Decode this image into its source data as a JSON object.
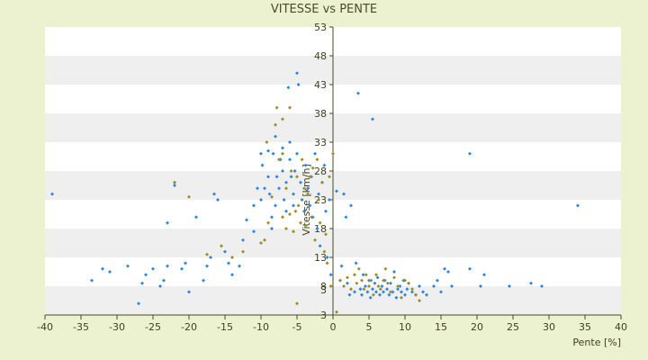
{
  "chart_data": {
    "type": "scatter",
    "title": "VITESSE vs PENTE",
    "xlabel": "Pente [%]",
    "ylabel": "Vitesse [km/h]",
    "xlim": [
      -40,
      40
    ],
    "ylim": [
      3,
      53
    ],
    "x_ticks": [
      "-40",
      "-35",
      "-30",
      "-25",
      "-20",
      "-15",
      "-10",
      "-5",
      "0",
      "5",
      "10",
      "15",
      "20",
      "25",
      "30",
      "35",
      "40"
    ],
    "y_ticks": [
      "3",
      "8",
      "13",
      "18",
      "23",
      "28",
      "33",
      "38",
      "43",
      "48",
      "53"
    ],
    "y_tick_labels_shown": [
      "3",
      "3",
      "8",
      "13",
      "18",
      "23",
      "28",
      "33",
      "38",
      "43",
      "48",
      "53"
    ],
    "grid": "horizontal bands",
    "colors": {
      "background": "#ecf2cf",
      "plot_band_light": "#ffffff",
      "plot_band_dark": "#efefef",
      "series_blue": "#2e86de",
      "series_olive": "#9c8f2a",
      "axis": "#4a4a2a"
    },
    "series": [
      {
        "color": "#2e86de",
        "points": [
          [
            -39,
            24
          ],
          [
            -33.5,
            9
          ],
          [
            -32,
            11
          ],
          [
            -31,
            10.5
          ],
          [
            -28.5,
            11.5
          ],
          [
            -27,
            5
          ],
          [
            -26.5,
            8.5
          ],
          [
            -26,
            10
          ],
          [
            -25,
            11
          ],
          [
            -24,
            8
          ],
          [
            -23.5,
            9
          ],
          [
            -23,
            19
          ],
          [
            -23,
            11.5
          ],
          [
            -22,
            25.5
          ],
          [
            -22,
            26
          ],
          [
            -21,
            11
          ],
          [
            -20.5,
            12
          ],
          [
            -20,
            7
          ],
          [
            -19,
            20
          ],
          [
            -18,
            9
          ],
          [
            -17.5,
            11.5
          ],
          [
            -17,
            13
          ],
          [
            -16.5,
            24
          ],
          [
            -16,
            23
          ],
          [
            -15,
            14
          ],
          [
            -14.5,
            12
          ],
          [
            -14,
            10
          ],
          [
            -13,
            11.5
          ],
          [
            -12.5,
            16
          ],
          [
            -12,
            19.5
          ],
          [
            -11,
            22
          ],
          [
            -11,
            17.5
          ],
          [
            -10.5,
            25
          ],
          [
            -10,
            23
          ],
          [
            -10,
            31
          ],
          [
            -9.8,
            29
          ],
          [
            -9.5,
            25
          ],
          [
            -9,
            31.5
          ],
          [
            -9,
            27
          ],
          [
            -8.8,
            24
          ],
          [
            -8.5,
            20
          ],
          [
            -8.5,
            18
          ],
          [
            -8.3,
            31
          ],
          [
            -8,
            34
          ],
          [
            -8,
            22
          ],
          [
            -7.8,
            27
          ],
          [
            -7.5,
            25
          ],
          [
            -7.3,
            30
          ],
          [
            -7,
            32
          ],
          [
            -7,
            28
          ],
          [
            -6.8,
            23
          ],
          [
            -6.5,
            26
          ],
          [
            -6.5,
            21
          ],
          [
            -6.2,
            42.5
          ],
          [
            -6,
            33
          ],
          [
            -6,
            30
          ],
          [
            -5.8,
            27
          ],
          [
            -5.5,
            24
          ],
          [
            -5.5,
            22
          ],
          [
            -5.3,
            28
          ],
          [
            -5,
            45
          ],
          [
            -5,
            31
          ],
          [
            -4.8,
            43
          ],
          [
            -4.5,
            26
          ],
          [
            -4.3,
            23
          ],
          [
            -4,
            21
          ],
          [
            -3.8,
            29
          ],
          [
            -3.5,
            25
          ],
          [
            -3.2,
            22
          ],
          [
            -3,
            27
          ],
          [
            -2.8,
            20
          ],
          [
            -2.5,
            31
          ],
          [
            -2.2,
            18
          ],
          [
            -2,
            24
          ],
          [
            -1.8,
            15
          ],
          [
            -1.5,
            26
          ],
          [
            -1.2,
            29
          ],
          [
            -1,
            21
          ],
          [
            -0.8,
            13
          ],
          [
            -0.5,
            23
          ],
          [
            -0.3,
            10
          ],
          [
            0.5,
            24.5
          ],
          [
            1,
            9
          ],
          [
            1.2,
            11.5
          ],
          [
            1.5,
            24
          ],
          [
            1.8,
            20
          ],
          [
            2,
            8.5
          ],
          [
            2.3,
            6.5
          ],
          [
            2.5,
            22
          ],
          [
            3,
            7
          ],
          [
            3.2,
            12
          ],
          [
            3.5,
            41.5
          ],
          [
            3.8,
            7.5
          ],
          [
            4,
            6.5
          ],
          [
            4.2,
            10
          ],
          [
            4.5,
            8
          ],
          [
            4.8,
            7
          ],
          [
            5,
            9
          ],
          [
            5.2,
            6
          ],
          [
            5.5,
            37
          ],
          [
            5.5,
            7.5
          ],
          [
            5.8,
            8.5
          ],
          [
            6,
            7
          ],
          [
            6.2,
            9.5
          ],
          [
            6.5,
            6.5
          ],
          [
            6.8,
            8
          ],
          [
            7,
            7
          ],
          [
            7.2,
            9
          ],
          [
            7.5,
            7.5
          ],
          [
            7.8,
            6.5
          ],
          [
            8,
            8.5
          ],
          [
            8.3,
            7
          ],
          [
            8.5,
            10.5
          ],
          [
            8.8,
            6
          ],
          [
            9,
            7.5
          ],
          [
            9.3,
            8
          ],
          [
            9.5,
            7
          ],
          [
            9.8,
            9
          ],
          [
            10,
            6.5
          ],
          [
            10.3,
            7.5
          ],
          [
            10.5,
            8.5
          ],
          [
            11,
            7
          ],
          [
            11.5,
            6.5
          ],
          [
            12,
            8
          ],
          [
            12.5,
            7
          ],
          [
            13,
            6.5
          ],
          [
            14,
            8
          ],
          [
            14.5,
            9
          ],
          [
            15,
            7
          ],
          [
            15.5,
            11
          ],
          [
            16,
            10.5
          ],
          [
            16.5,
            8
          ],
          [
            19,
            11
          ],
          [
            19,
            31
          ],
          [
            20.5,
            8
          ],
          [
            21,
            10
          ],
          [
            24.5,
            8
          ],
          [
            27.5,
            8.5
          ],
          [
            29,
            8
          ],
          [
            34,
            22
          ]
        ]
      },
      {
        "color": "#9c8f2a",
        "points": [
          [
            -22,
            26
          ],
          [
            -20,
            23.5
          ],
          [
            -17.5,
            13.5
          ],
          [
            -15.5,
            15
          ],
          [
            -14,
            13
          ],
          [
            -12.5,
            14
          ],
          [
            -10,
            15.5
          ],
          [
            -9.5,
            16
          ],
          [
            -9,
            19
          ],
          [
            -8.5,
            23.5
          ],
          [
            -8,
            36
          ],
          [
            -7.5,
            30
          ],
          [
            -7,
            31
          ],
          [
            -7,
            20
          ],
          [
            -6.5,
            18
          ],
          [
            -6.5,
            25
          ],
          [
            -6,
            20.5
          ],
          [
            -5.8,
            28
          ],
          [
            -5.5,
            17.5
          ],
          [
            -5.2,
            21
          ],
          [
            -5,
            27
          ],
          [
            -5,
            5
          ],
          [
            -4.8,
            22
          ],
          [
            -4.5,
            19
          ],
          [
            -4.3,
            30
          ],
          [
            -4,
            25
          ],
          [
            -3.8,
            18.5
          ],
          [
            -3.5,
            24
          ],
          [
            -3.2,
            27
          ],
          [
            -3,
            20
          ],
          [
            -2.8,
            28.5
          ],
          [
            -2.5,
            16
          ],
          [
            -2.2,
            30
          ],
          [
            -2,
            23
          ],
          [
            -1.8,
            19
          ],
          [
            -1.5,
            26
          ],
          [
            -1.2,
            14
          ],
          [
            -1,
            17
          ],
          [
            -0.8,
            12
          ],
          [
            -0.5,
            27
          ],
          [
            -0.3,
            8
          ],
          [
            0,
            31
          ],
          [
            0.5,
            3.5
          ],
          [
            1,
            9
          ],
          [
            1.5,
            8
          ],
          [
            2,
            9.5
          ],
          [
            2.5,
            7.5
          ],
          [
            3,
            10
          ],
          [
            3.3,
            8.5
          ],
          [
            3.6,
            11
          ],
          [
            4,
            9
          ],
          [
            4.3,
            7.5
          ],
          [
            4.6,
            10
          ],
          [
            5,
            8
          ],
          [
            5.3,
            9
          ],
          [
            5.6,
            6.5
          ],
          [
            6,
            10
          ],
          [
            6.3,
            8
          ],
          [
            6.6,
            7.5
          ],
          [
            7,
            9
          ],
          [
            7.3,
            11
          ],
          [
            7.6,
            8.5
          ],
          [
            8,
            7
          ],
          [
            8.5,
            9.5
          ],
          [
            9,
            8
          ],
          [
            9.5,
            6
          ],
          [
            10,
            9
          ],
          [
            10.5,
            8.5
          ],
          [
            11,
            7.5
          ],
          [
            11.5,
            6.5
          ],
          [
            12,
            5.5
          ],
          [
            -7,
            37
          ],
          [
            -6,
            39
          ],
          [
            -7.8,
            39
          ],
          [
            -9.2,
            33
          ]
        ]
      }
    ]
  }
}
